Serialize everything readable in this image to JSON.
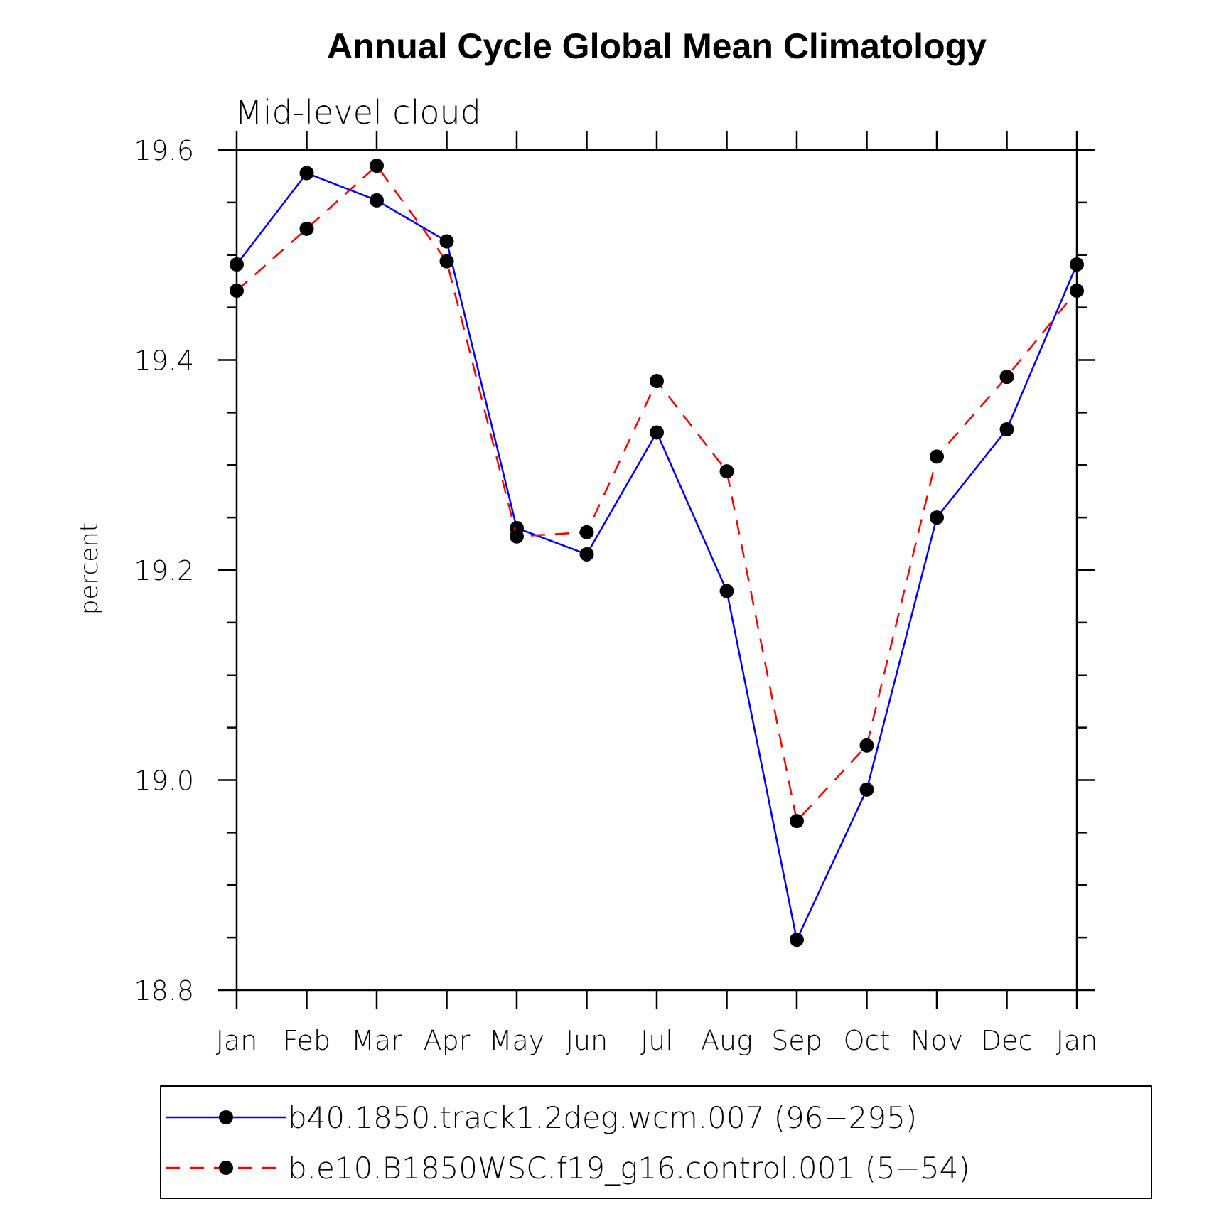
{
  "chart_data": {
    "type": "line",
    "title": "Annual Cycle Global Mean Climatology",
    "subtitle": "Mid-level cloud",
    "xlabel": "",
    "ylabel": "percent",
    "categories": [
      "Jan",
      "Feb",
      "Mar",
      "Apr",
      "May",
      "Jun",
      "Jul",
      "Aug",
      "Sep",
      "Oct",
      "Nov",
      "Dec",
      "Jan"
    ],
    "ylim": [
      18.8,
      19.6
    ],
    "yticks": [
      18.8,
      19.0,
      19.2,
      19.4,
      19.6
    ],
    "ytick_labels": [
      "18.8",
      "19.0",
      "19.2",
      "19.4",
      "19.6"
    ],
    "legend_position": "bottom",
    "series": [
      {
        "name": "b40.1850.track1.2deg.wcm.007 (96−295)",
        "color": "#0000ff",
        "dash": "solid",
        "values": [
          19.491,
          19.578,
          19.552,
          19.513,
          19.24,
          19.215,
          19.331,
          19.18,
          18.848,
          18.991,
          19.25,
          19.334,
          19.491
        ]
      },
      {
        "name": "b.e10.B1850WSC.f19_g16.control.001 (5−54)",
        "color": "#ff0000",
        "dash": "dashed",
        "values": [
          19.466,
          19.525,
          19.585,
          19.494,
          19.232,
          19.236,
          19.38,
          19.294,
          18.961,
          19.033,
          19.308,
          19.384,
          19.466
        ]
      }
    ]
  }
}
